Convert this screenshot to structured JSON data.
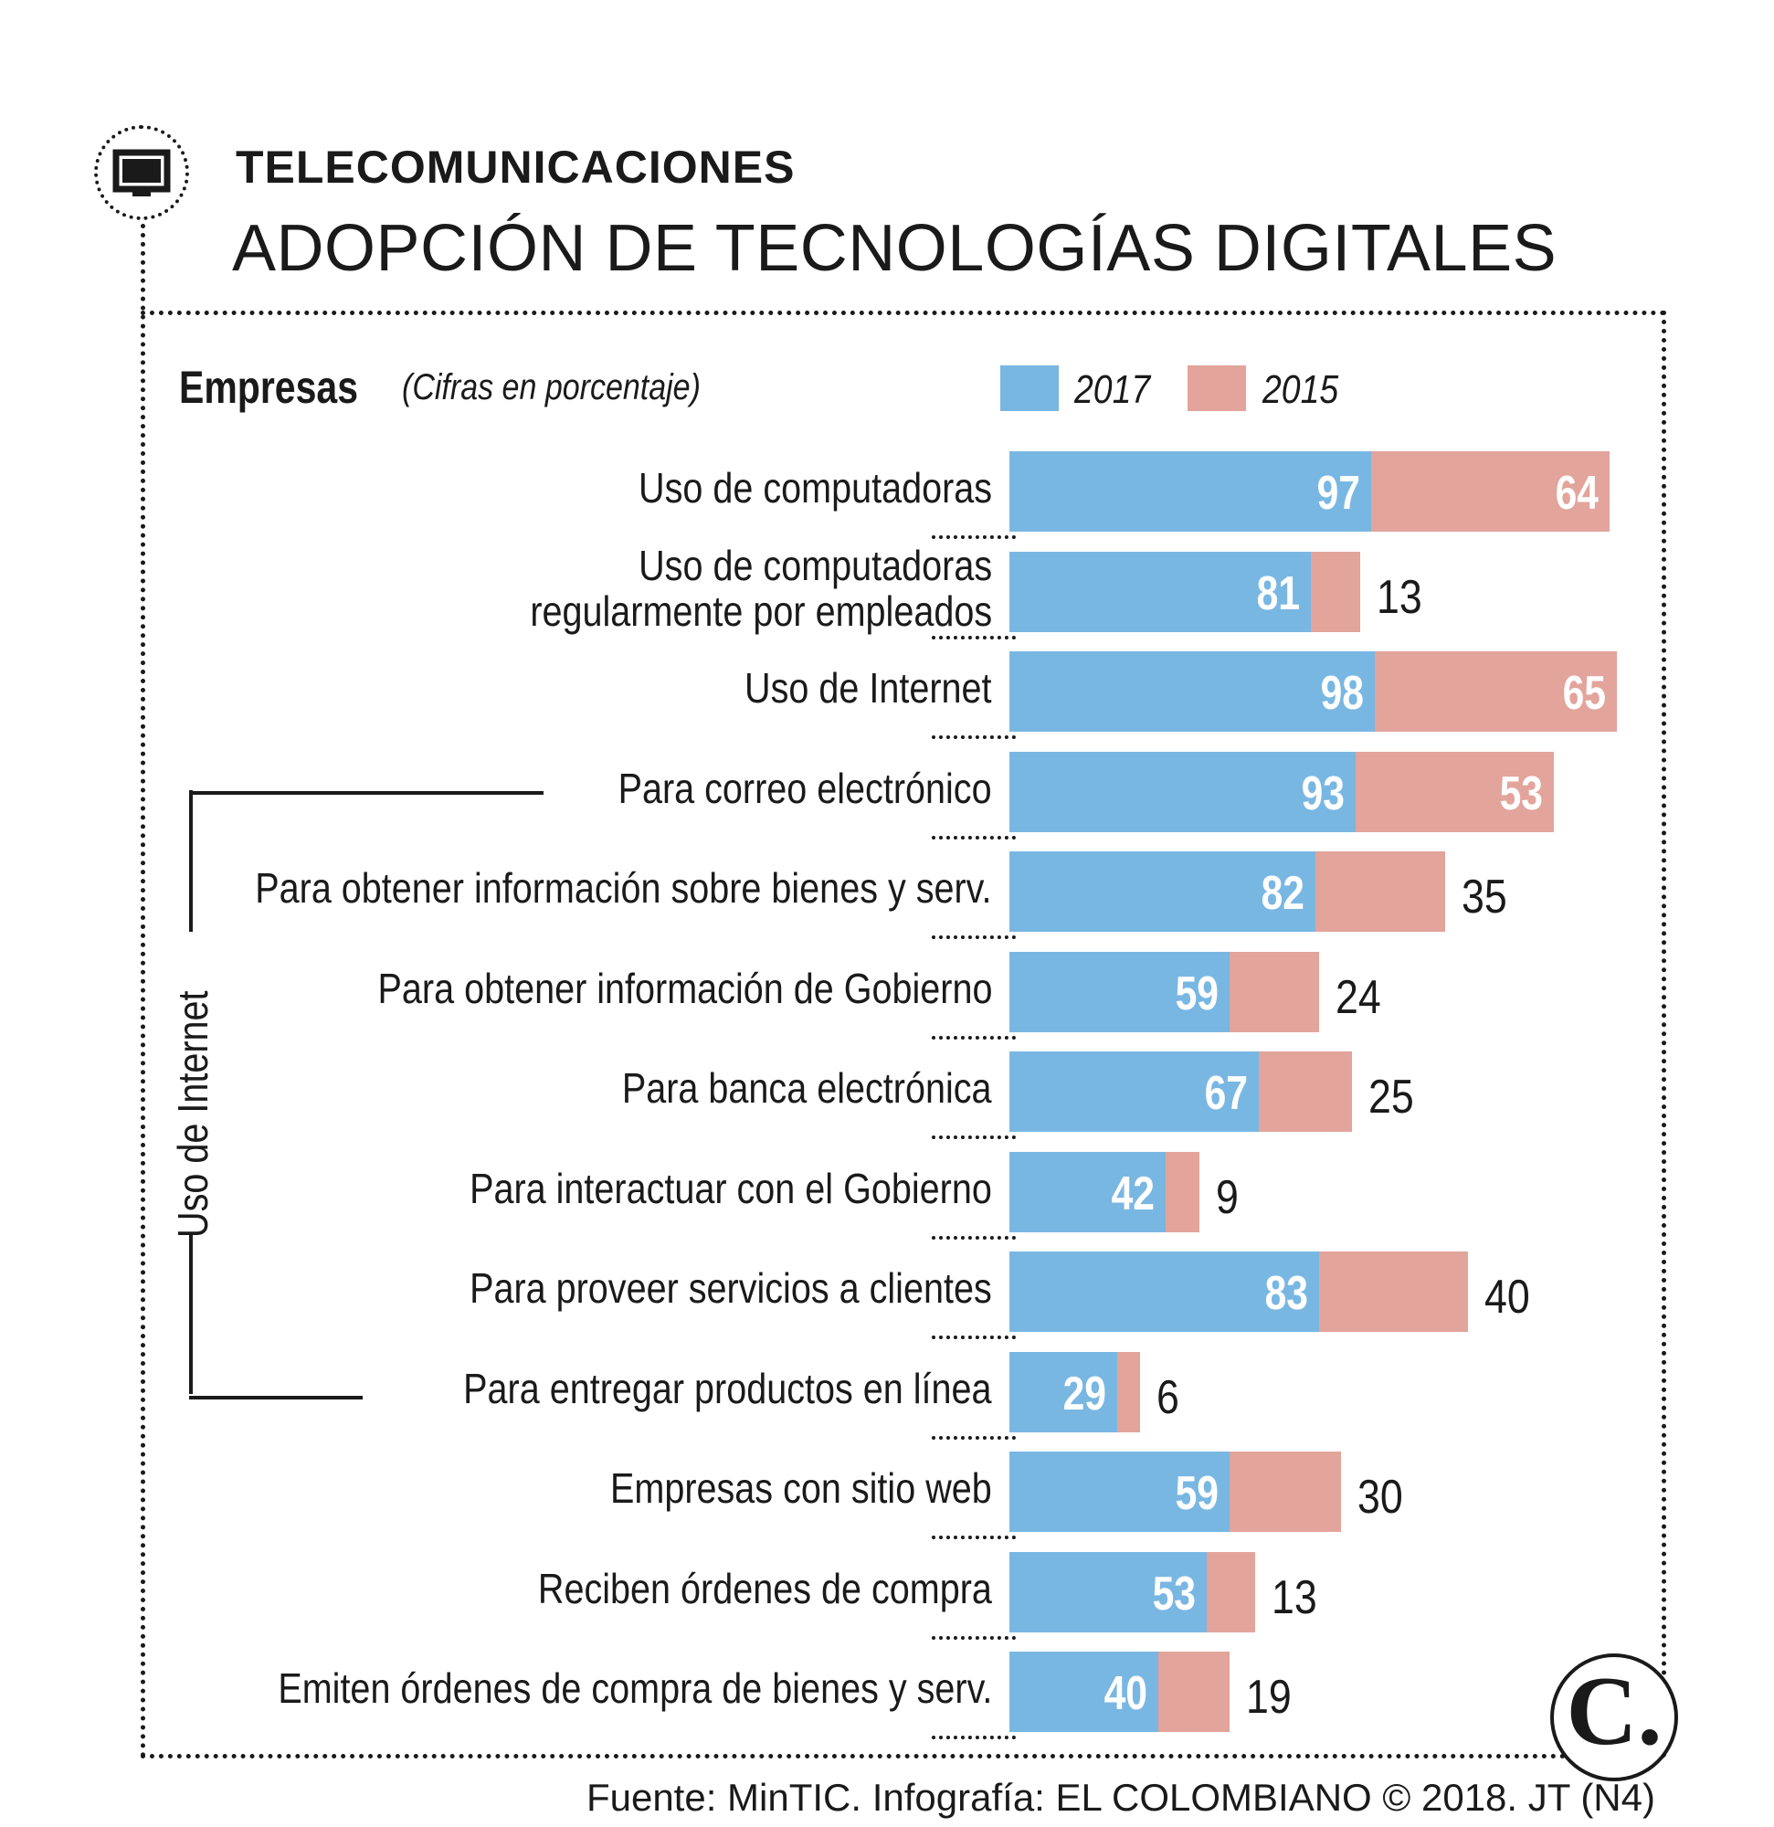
{
  "header": {
    "kicker": "TELECOMUNICACIONES",
    "title": "ADOPCIÓN DE TECNOLOGÍAS DIGITALES",
    "icon": "tv-monitor-icon"
  },
  "chart_data": {
    "type": "bar",
    "orientation": "horizontal",
    "stacked": true,
    "title": "Empresas",
    "subtitle": "(Cifras en porcentaje)",
    "legend_position": "top-right",
    "bracket_label": "Uso de Internet",
    "categories": [
      "Uso de computadoras",
      "Uso de computadoras regularmente por empleados",
      "Uso de Internet",
      "Para correo electrónico",
      "Para obtener información sobre bienes y serv.",
      "Para obtener información de Gobierno",
      "Para banca electrónica",
      "Para interactuar con el Gobierno",
      "Para proveer servicios a clientes",
      "Para entregar productos en línea",
      "Empresas con sitio web",
      "Reciben órdenes de compra",
      "Emiten órdenes de compra de bienes y serv."
    ],
    "category_lines": [
      [
        "Uso de computadoras"
      ],
      [
        "Uso de computadoras",
        "regularmente por empleados"
      ],
      [
        "Uso de Internet"
      ],
      [
        "Para correo electrónico"
      ],
      [
        "Para obtener información sobre bienes y serv."
      ],
      [
        "Para obtener información de Gobierno"
      ],
      [
        "Para banca electrónica"
      ],
      [
        "Para interactuar con el Gobierno"
      ],
      [
        "Para proveer servicios a clientes"
      ],
      [
        "Para entregar productos en línea"
      ],
      [
        "Empresas con sitio web"
      ],
      [
        "Reciben órdenes de compra"
      ],
      [
        "Emiten órdenes de compra de bienes y serv."
      ]
    ],
    "series": [
      {
        "name": "2017",
        "color": "#79b7e3",
        "values": [
          97,
          81,
          98,
          93,
          82,
          59,
          67,
          42,
          83,
          29,
          59,
          53,
          40
        ]
      },
      {
        "name": "2015",
        "color": "#e2a49b",
        "values": [
          64,
          13,
          65,
          53,
          35,
          24,
          25,
          9,
          40,
          6,
          30,
          13,
          19
        ]
      }
    ]
  },
  "footer": {
    "logo_letter": "C.",
    "source": "Fuente: MinTIC. Infografía: EL COLOMBIANO © 2018. JT (N4)"
  }
}
